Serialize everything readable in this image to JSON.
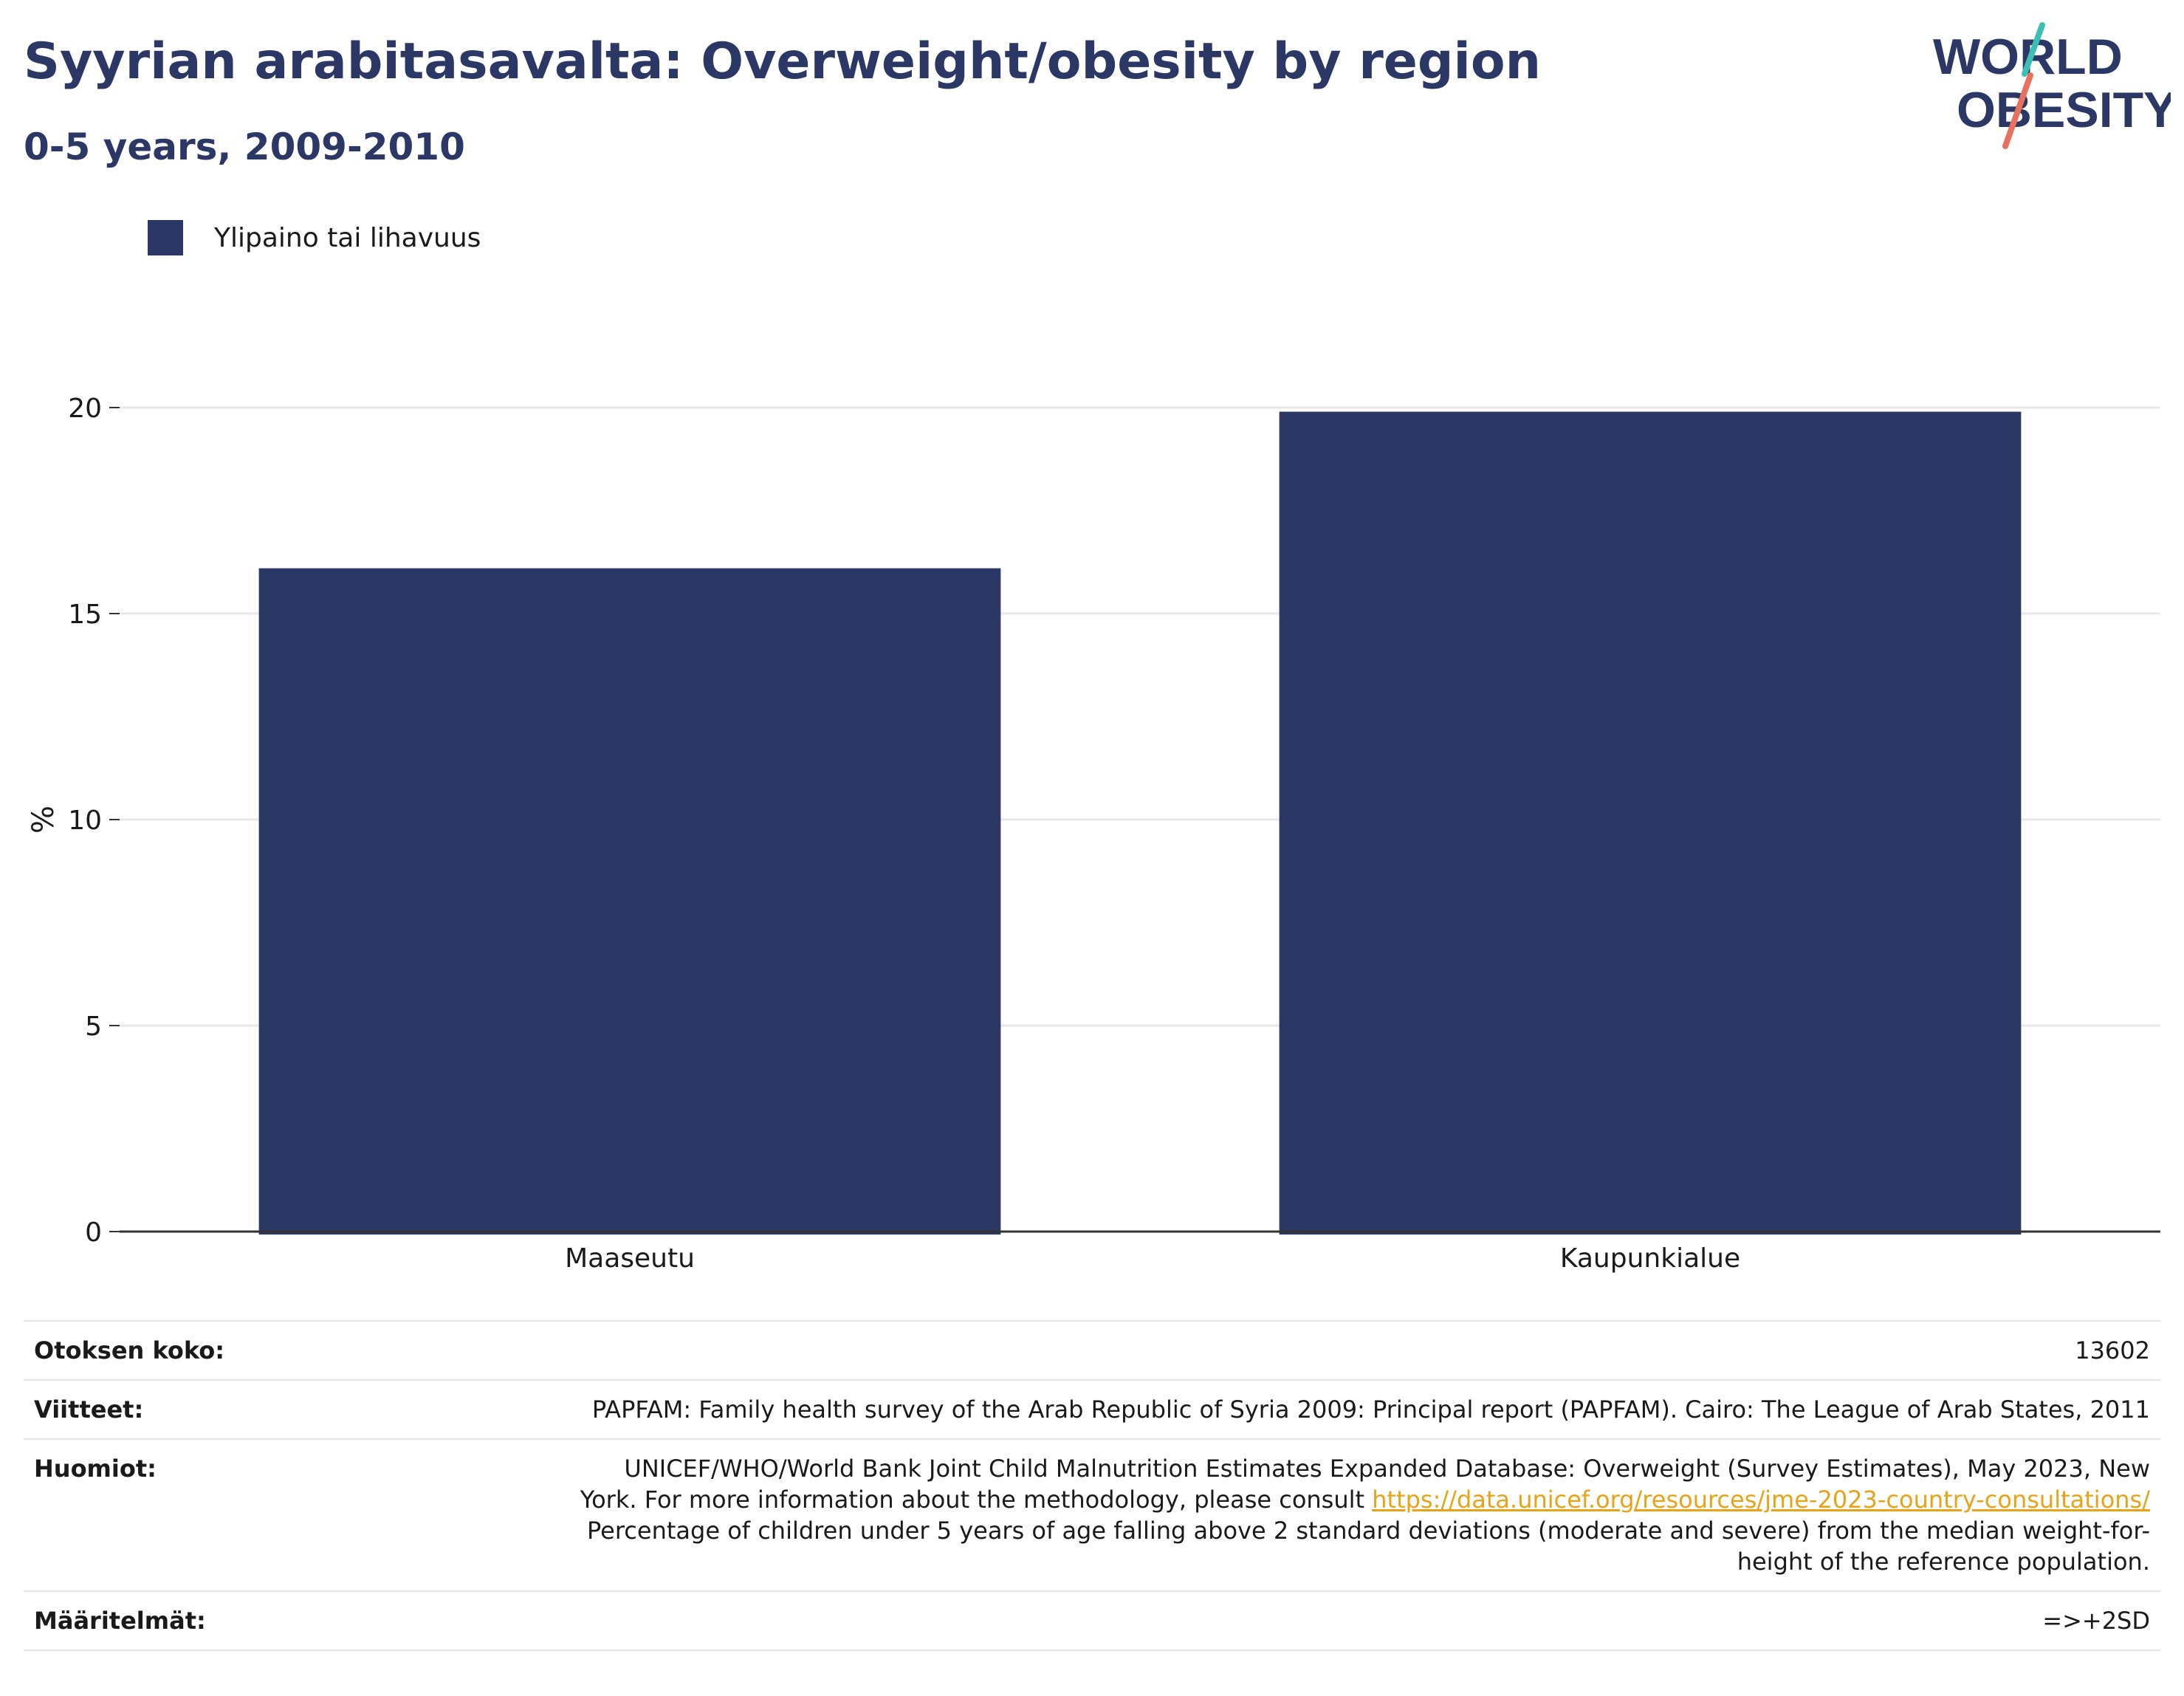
{
  "header": {
    "title": "Syyrian arabitasavalta: Overweight/obesity by region",
    "subtitle": "0-5 years, 2009-2010"
  },
  "logo": {
    "line1": "WORLD",
    "line2": "OBESITY",
    "text_color": "#2b3764",
    "slash_colors": [
      "#3cbfb4",
      "#e8705f"
    ]
  },
  "legend": {
    "label": "Ylipaino tai lihavuus",
    "color": "#2b3764"
  },
  "chart_data": {
    "type": "bar",
    "categories": [
      "Maaseutu",
      "Kaupunkialue"
    ],
    "series": [
      {
        "name": "Ylipaino tai lihavuus",
        "values": [
          16.1,
          19.9
        ],
        "color": "#2b3764"
      }
    ],
    "xlabel": "",
    "ylabel": "%",
    "ylim": [
      0,
      20
    ],
    "yticks": [
      0,
      5,
      10,
      15,
      20
    ],
    "grid": true,
    "legend_position": "top-left"
  },
  "info": {
    "sample_label": "Otoksen koko:",
    "sample_value": "13602",
    "refs_label": "Viitteet:",
    "refs_value": "PAPFAM: Family health survey of the Arab Republic of Syria 2009: Principal report (PAPFAM). Cairo: The League of Arab States, 2011",
    "notes_label": "Huomiot:",
    "notes_line1": "UNICEF/WHO/World Bank Joint Child Malnutrition Estimates Expanded Database: Overweight (Survey Estimates), May 2023, New",
    "notes_line2_prefix": "York. For more information about the methodology, please consult ",
    "notes_link": "https://data.unicef.org/resources/jme-2023-country-consultations/",
    "notes_line3": "Percentage of children under 5 years of age falling above 2 standard deviations (moderate and severe) from the median weight-for-",
    "notes_line4": "height of the reference population.",
    "defs_label": "Määritelmät:",
    "defs_value": "=>+2SD"
  }
}
